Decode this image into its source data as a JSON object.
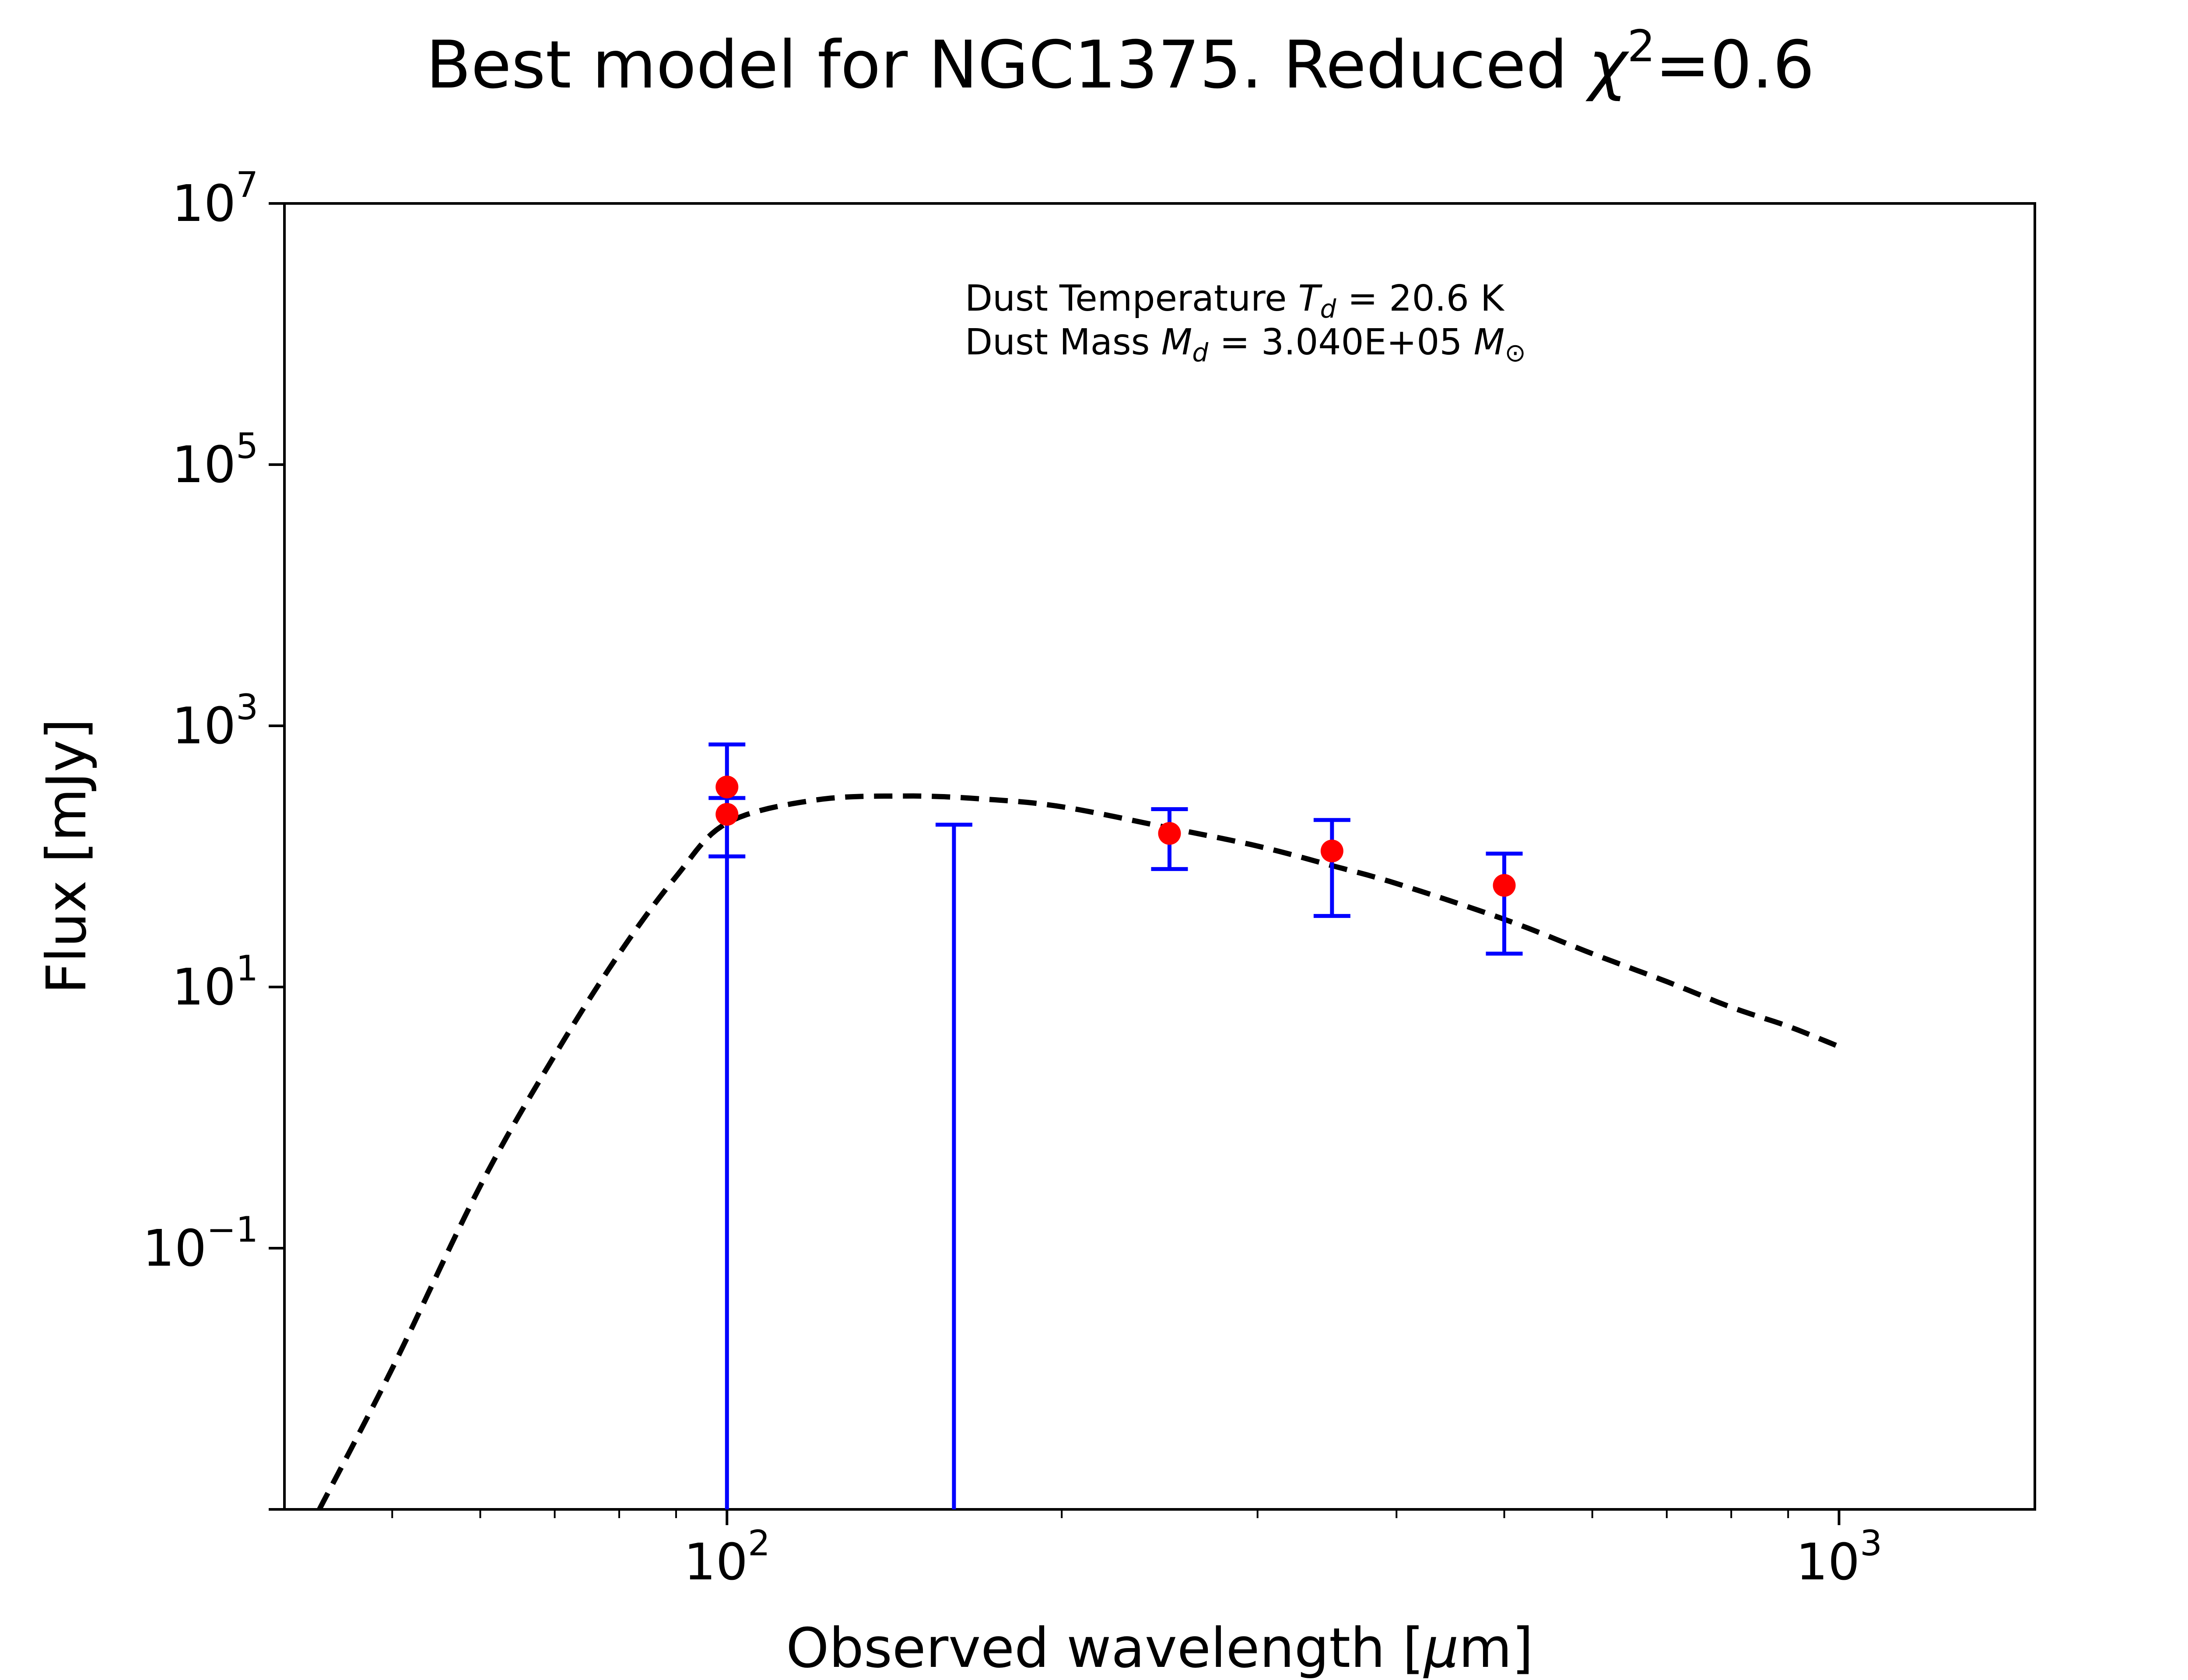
{
  "chart_data": {
    "type": "scatter",
    "title": {
      "prefix": "Best model for NGC1375. Reduced ",
      "symbol": "χ",
      "superscript": "2",
      "suffix": "=0.6"
    },
    "xlabel": {
      "prefix": "Observed wavelength [",
      "symbol": "μ",
      "suffix": "m]"
    },
    "ylabel": "Flux [mJy]",
    "x_scale": "log",
    "y_scale": "log",
    "xlim": [
      40,
      1500
    ],
    "ylim": [
      0.001,
      10000000
    ],
    "grid": false,
    "x_ticks": [
      {
        "value": 100,
        "base": "10",
        "exp": "2"
      },
      {
        "value": 1000,
        "base": "10",
        "exp": "3"
      }
    ],
    "y_ticks": [
      {
        "value": 0.1,
        "base": "10",
        "exp": "−1"
      },
      {
        "value": 10,
        "base": "10",
        "exp": "1"
      },
      {
        "value": 1000,
        "base": "10",
        "exp": "3"
      },
      {
        "value": 100000,
        "base": "10",
        "exp": "5"
      },
      {
        "value": 10000000,
        "base": "10",
        "exp": "7"
      }
    ],
    "annotations": {
      "temperature": {
        "prefix": "Dust Temperature ",
        "symbol": "T",
        "sub": "d",
        "suffix": " = 20.6 K"
      },
      "mass": {
        "prefix": "Dust Mass ",
        "symbol": "M",
        "sub": "d",
        "middle": " = 3.040E+05 ",
        "symbol2": "M",
        "sub2": "⊙"
      }
    },
    "points": [
      {
        "x": 100,
        "y": 210,
        "yerr_low": 100,
        "yerr_high": 280
      },
      {
        "x": 100,
        "y": 340,
        "yerr_low": 0.001,
        "yerr_high": 720
      },
      {
        "x": 250,
        "y": 150,
        "yerr_low": 80,
        "yerr_high": 230
      },
      {
        "x": 350,
        "y": 110,
        "yerr_low": 35,
        "yerr_high": 190
      },
      {
        "x": 500,
        "y": 60,
        "yerr_low": 18,
        "yerr_high": 105
      }
    ],
    "upper_limits": [
      {
        "x": 160,
        "y_top": 175,
        "y_bottom": 0.001
      }
    ],
    "model": {
      "style": "dashed",
      "color": "#000000",
      "x": [
        43,
        50,
        60,
        70,
        80,
        90,
        100,
        120,
        145,
        170,
        200,
        250,
        300,
        350,
        400,
        500,
        600,
        700,
        800,
        900,
        1000
      ],
      "y": [
        0.001,
        0.012,
        0.3,
        3,
        18,
        70,
        180,
        270,
        290,
        275,
        240,
        165,
        120,
        85,
        62,
        33,
        18,
        11,
        7,
        5,
        3.5
      ]
    },
    "colors": {
      "points": "#ff0000",
      "errorbars": "#0000ff",
      "model": "#000000"
    }
  }
}
